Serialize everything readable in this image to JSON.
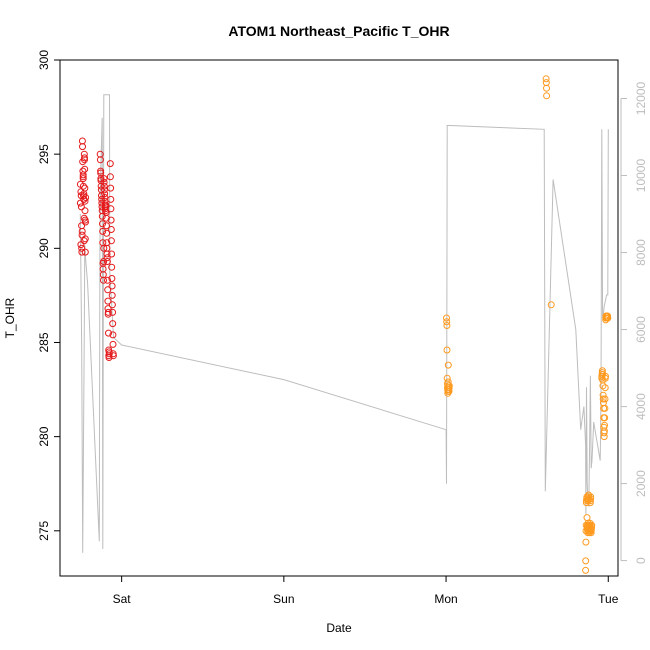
{
  "chart_data": {
    "type": "scatter",
    "title": "ATOM1 Northeast_Pacific T_OHR",
    "xlabel": "Date",
    "ylabel": "T_OHR",
    "x_unit": "days since Friday 00:00",
    "x_ticks": [
      {
        "label": "Sat",
        "value": 1.0
      },
      {
        "label": "Sun",
        "value": 2.0
      },
      {
        "label": "Mon",
        "value": 3.0
      },
      {
        "label": "Tue",
        "value": 4.0
      }
    ],
    "xlim": [
      0.62,
      4.06
    ],
    "ylim": [
      272.6,
      300.0
    ],
    "y_ticks": [
      275,
      280,
      285,
      290,
      295,
      300
    ],
    "y2_label": "",
    "y2_ticks": [
      0,
      2000,
      4000,
      6000,
      8000,
      10000,
      12000
    ],
    "y2lim": [
      -400,
      13000
    ],
    "colors": {
      "Friday-Saturday": "#e41a1c",
      "Monday-Tuesday": "#ff9a1f",
      "altitude": "#bdbdbd"
    },
    "series": [
      {
        "color": "#e41a1c",
        "marker": "open-circle",
        "axis": "left",
        "x": [
          0.746,
          0.746,
          0.749,
          0.749,
          0.751,
          0.752,
          0.753,
          0.754,
          0.755,
          0.756,
          0.757,
          0.758,
          0.759,
          0.76,
          0.761,
          0.763,
          0.763,
          0.763,
          0.764,
          0.765,
          0.766,
          0.767,
          0.768,
          0.769,
          0.769,
          0.77,
          0.771,
          0.771,
          0.772,
          0.773,
          0.774,
          0.774,
          0.775,
          0.776,
          0.776,
          0.777,
          0.778,
          0.868,
          0.869,
          0.87,
          0.871,
          0.872,
          0.873,
          0.874,
          0.875,
          0.876,
          0.877,
          0.878,
          0.879,
          0.88,
          0.881,
          0.882,
          0.883,
          0.884,
          0.885,
          0.886,
          0.887,
          0.888,
          0.889,
          0.89,
          0.891,
          0.892,
          0.893,
          0.894,
          0.895,
          0.896,
          0.897,
          0.898,
          0.899,
          0.9,
          0.901,
          0.902,
          0.903,
          0.904,
          0.905,
          0.906,
          0.907,
          0.908,
          0.909,
          0.91,
          0.911,
          0.912,
          0.913,
          0.914,
          0.915,
          0.916,
          0.917,
          0.918,
          0.919,
          0.92,
          0.921,
          0.922,
          0.923,
          0.924,
          0.93,
          0.931,
          0.932,
          0.933,
          0.934,
          0.935,
          0.936,
          0.937,
          0.938,
          0.939,
          0.94,
          0.941,
          0.942,
          0.943,
          0.944,
          0.945,
          0.946,
          0.947,
          0.948,
          0.949
        ],
        "y": [
          292.4,
          293.4,
          290.2,
          293.0,
          292.8,
          292.2,
          291.2,
          290.0,
          289.8,
          290.7,
          290.9,
          295.7,
          295.4,
          294.6,
          294.1,
          293.7,
          293.8,
          293.9,
          293.3,
          292.8,
          292.6,
          292.9,
          292.6,
          291.6,
          290.4,
          295.0,
          294.7,
          294.8,
          294.2,
          293.2,
          292.5,
          292.0,
          291.5,
          289.8,
          290.5,
          291.4,
          292.7,
          295.0,
          294.7,
          294.1,
          294.0,
          293.7,
          293.6,
          293.3,
          293.1,
          292.8,
          292.6,
          292.4,
          292.2,
          292.0,
          291.7,
          291.3,
          290.9,
          290.3,
          289.2,
          288.9,
          288.6,
          288.3,
          289.3,
          290.0,
          293.7,
          293.5,
          293.3,
          293.1,
          292.9,
          292.7,
          292.5,
          292.3,
          292.2,
          292.1,
          292.0,
          292.2,
          292.3,
          291.9,
          291.6,
          291.2,
          290.8,
          290.3,
          290.0,
          289.7,
          289.5,
          289.3,
          288.3,
          287.8,
          287.2,
          286.8,
          286.5,
          286.6,
          285.5,
          284.6,
          284.3,
          284.2,
          284.5,
          284.4,
          294.5,
          293.8,
          293.2,
          292.6,
          292.1,
          291.5,
          291.0,
          290.4,
          289.7,
          289.0,
          288.4,
          288.0,
          287.5,
          287.0,
          286.6,
          286.0,
          285.4,
          284.9,
          284.4,
          284.3
        ]
      },
      {
        "color": "#ff9a1f",
        "marker": "open-circle",
        "axis": "left",
        "x": [
          3.003,
          3.004,
          3.005,
          3.006,
          3.007,
          3.008,
          3.009,
          3.01,
          3.011,
          3.012,
          3.013,
          3.014,
          3.015,
          3.016,
          3.017,
          3.018,
          3.019,
          3.02,
          3.617,
          3.618,
          3.619,
          3.62,
          3.648,
          3.86,
          3.861,
          3.862,
          3.863,
          3.864,
          3.865,
          3.866,
          3.867,
          3.868,
          3.869,
          3.87,
          3.871,
          3.872,
          3.873,
          3.874,
          3.875,
          3.876,
          3.877,
          3.878,
          3.879,
          3.88,
          3.881,
          3.882,
          3.883,
          3.884,
          3.885,
          3.886,
          3.887,
          3.888,
          3.889,
          3.89,
          3.891,
          3.892,
          3.893,
          3.894,
          3.895,
          3.896,
          3.897,
          3.898,
          3.96,
          3.961,
          3.962,
          3.963,
          3.964,
          3.965,
          3.966,
          3.967,
          3.968,
          3.969,
          3.97,
          3.971,
          3.972,
          3.973,
          3.974,
          3.975,
          3.976,
          3.977,
          3.978,
          3.979,
          3.98,
          3.981,
          3.982,
          3.983,
          3.984,
          3.985,
          3.986,
          3.987,
          3.988,
          3.989,
          3.99,
          3.991,
          3.992,
          3.993,
          3.994,
          3.995,
          3.996,
          3.997
        ],
        "y": [
          286.3,
          286.1,
          285.9,
          284.6,
          283.1,
          282.8,
          282.6,
          282.5,
          282.3,
          282.4,
          282.9,
          283.8,
          282.7,
          282.6,
          282.5,
          282.4,
          282.6,
          282.7,
          299.0,
          298.8,
          298.5,
          298.1,
          287.0,
          272.9,
          273.4,
          274.4,
          275.0,
          275.3,
          276.5,
          276.6,
          276.7,
          276.8,
          275.7,
          275.2,
          275.1,
          275.3,
          275.0,
          274.9,
          275.4,
          276.6,
          276.7,
          276.8,
          276.9,
          275.3,
          275.2,
          275.1,
          275.0,
          274.9,
          275.0,
          275.2,
          275.3,
          275.4,
          276.5,
          276.6,
          276.7,
          276.8,
          275.0,
          274.9,
          275.0,
          275.1,
          275.2,
          275.3,
          283.1,
          283.2,
          283.3,
          283.4,
          283.5,
          283.3,
          283.0,
          282.7,
          282.2,
          282.0,
          281.8,
          281.5,
          281.0,
          280.5,
          280.2,
          280.0,
          280.3,
          280.6,
          281.0,
          281.5,
          282.0,
          282.6,
          283.1,
          283.2,
          286.2,
          286.3,
          286.4,
          286.3,
          286.4,
          286.3,
          286.4,
          286.3,
          286.4,
          286.3,
          286.4,
          286.3,
          286.4,
          286.3
        ]
      },
      {
        "color": "#bdbdbd",
        "type": "line",
        "axis": "right",
        "x": [
          0.745,
          0.754,
          0.76,
          0.77,
          0.773,
          0.775,
          0.79,
          0.862,
          0.866,
          0.87,
          0.88,
          0.884,
          0.89,
          0.895,
          0.91,
          0.925,
          0.927,
          0.95,
          1.0,
          2.0,
          3.0,
          3.003,
          3.005,
          3.007,
          3.009,
          3.011,
          3.013,
          3.015,
          3.017,
          3.019,
          3.025,
          3.605,
          3.612,
          3.66,
          3.8,
          3.83,
          3.85,
          3.86,
          3.862,
          3.866,
          3.87,
          3.875,
          3.88,
          3.885,
          3.89,
          3.895,
          3.9,
          3.91,
          3.93,
          3.95,
          3.955,
          3.96,
          3.965,
          3.97,
          3.975,
          3.98,
          3.985,
          3.99,
          3.992,
          3.995,
          3.997,
          4.0
        ],
        "y": [
          9000,
          5500,
          200,
          6000,
          8200,
          8000,
          7200,
          500,
          8000,
          10000,
          11500,
          300,
          12100,
          12100,
          12100,
          12100,
          7500,
          5800,
          5600,
          4700,
          3400,
          2000,
          7000,
          11300,
          11300,
          11300,
          11300,
          11300,
          11300,
          11300,
          11300,
          11200,
          1800,
          9900,
          6000,
          3400,
          4000,
          3000,
          1200,
          4500,
          2000,
          1600,
          1400,
          3000,
          4800,
          2400,
          2600,
          3600,
          3100,
          2600,
          4200,
          11200,
          6300,
          6400,
          6600,
          6700,
          6800,
          6900,
          6900,
          6900,
          6900,
          11200
        ]
      }
    ]
  }
}
